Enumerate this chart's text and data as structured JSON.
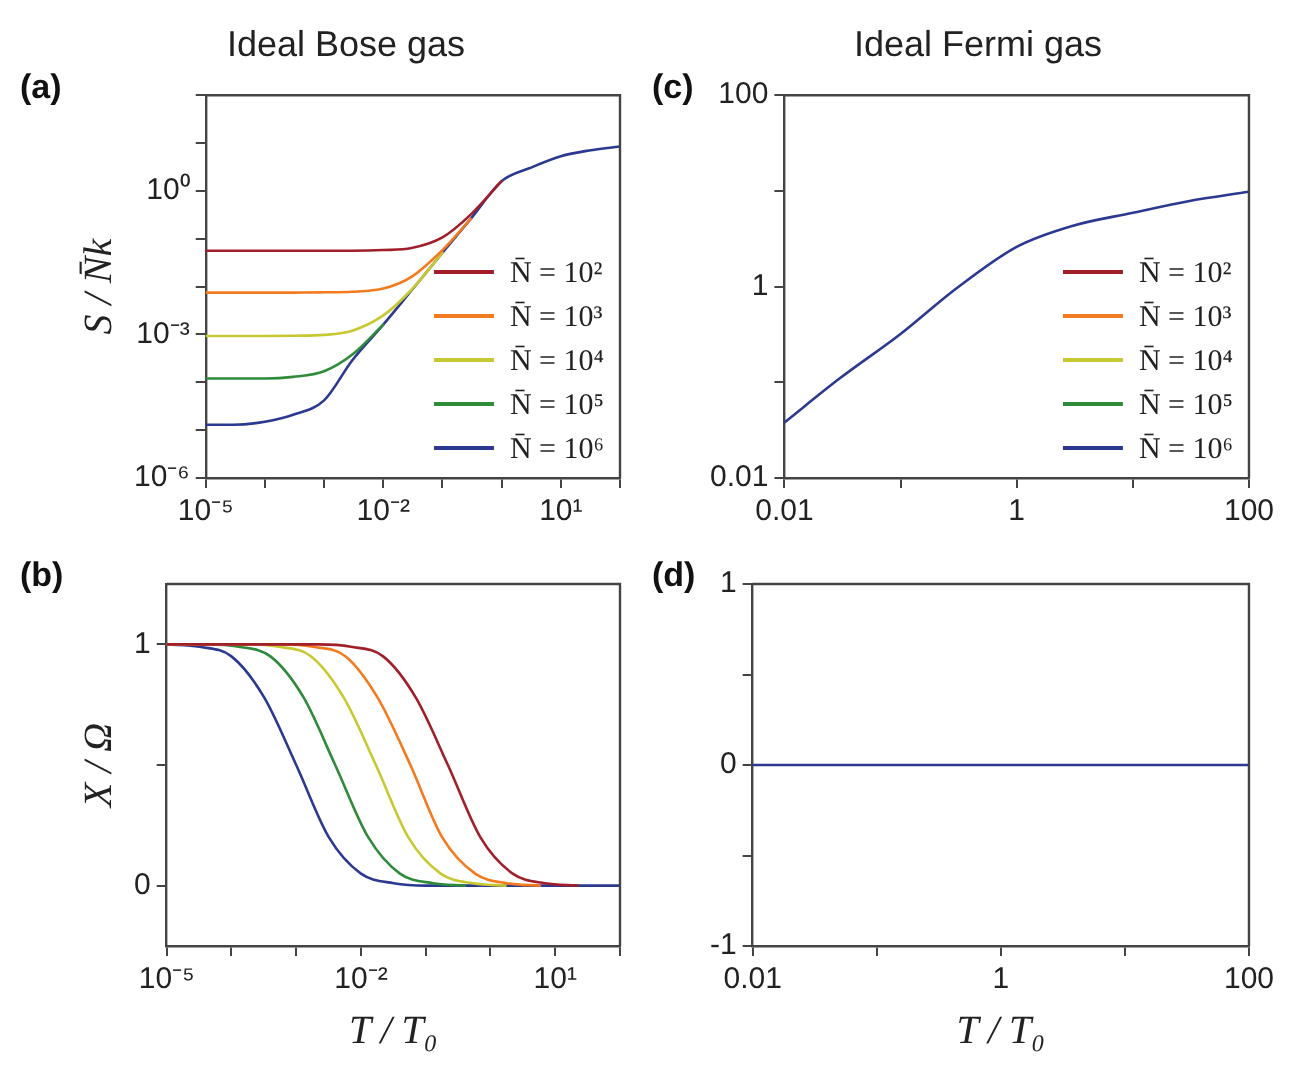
{
  "chart_data": [
    {
      "type": "line",
      "title": "Ideal Bose gas",
      "ylabel": "S / N̄k",
      "annotations": [
        "(a)"
      ],
      "log": "xy",
      "grid": false,
      "legend": "right",
      "marker": "none",
      "line_style": "solid",
      "x": [
        1e-05,
        3e-05,
        0.0001,
        0.0003,
        0.001,
        0.003,
        0.01,
        0.03,
        0.1,
        0.3,
        1,
        3,
        10,
        30,
        100
      ],
      "xlim": [
        1e-05,
        100
      ],
      "ylim": [
        1e-06,
        100
      ],
      "xticks": [
        {
          "value": 1e-05,
          "label": "10⁻⁵"
        },
        {
          "value": 0.0001,
          "label": null
        },
        {
          "value": 0.001,
          "label": null
        },
        {
          "value": 0.01,
          "label": "10⁻²"
        },
        {
          "value": 0.1,
          "label": null
        },
        {
          "value": 1,
          "label": null
        },
        {
          "value": 10,
          "label": "10¹"
        },
        {
          "value": 100,
          "label": null
        }
      ],
      "yticks": [
        {
          "value": 1e-06,
          "label": "10⁻⁶"
        },
        {
          "value": 1e-05,
          "label": null
        },
        {
          "value": 0.0001,
          "label": null
        },
        {
          "value": 0.001,
          "label": "10⁻³"
        },
        {
          "value": 0.01,
          "label": null
        },
        {
          "value": 0.1,
          "label": null
        },
        {
          "value": 1,
          "label": "10⁰"
        },
        {
          "value": 10,
          "label": null
        },
        {
          "value": 100,
          "label": null
        }
      ],
      "series": [
        {
          "name": "N̄ = 10²",
          "color": "#a01f2a",
          "values": [
            0.056,
            0.056,
            0.056,
            0.056,
            0.056,
            0.056,
            0.058,
            0.064,
            0.107,
            0.32,
            1.6,
            null,
            null,
            null,
            null
          ]
        },
        {
          "name": "N̄ = 10³",
          "color": "#f47a20",
          "values": [
            0.0075,
            0.0075,
            0.0075,
            0.0075,
            0.0076,
            0.0078,
            0.0091,
            0.016,
            0.058,
            0.26,
            null,
            null,
            null,
            null,
            null
          ]
        },
        {
          "name": "N̄ = 10⁴",
          "color": "#c8c832",
          "values": [
            0.00093,
            0.00093,
            0.00093,
            0.00094,
            0.00098,
            0.0012,
            0.0025,
            0.0086,
            0.051,
            null,
            null,
            null,
            null,
            null,
            null
          ]
        },
        {
          "name": "N̄ = 10⁵",
          "color": "#2e8b3a",
          "values": [
            0.00012,
            0.00012,
            0.00012,
            0.00013,
            0.00017,
            0.00038,
            0.0016,
            null,
            null,
            null,
            null,
            null,
            null,
            null,
            null
          ]
        },
        {
          "name": "N̄ = 10⁶",
          "color": "#2b3990",
          "values": [
            1.3e-05,
            1.3e-05,
            1.5e-05,
            2.1e-05,
            4.2e-05,
            0.00029,
            0.0016,
            0.0083,
            0.051,
            0.26,
            1.6,
            3,
            5.3,
            7,
            8.5
          ]
        }
      ]
    },
    {
      "type": "line",
      "title": "Ideal Fermi gas",
      "annotations": [
        "(c)"
      ],
      "log": "xy",
      "grid": false,
      "legend": "right",
      "marker": "none",
      "line_style": "solid",
      "x": [
        0.01,
        0.03,
        0.1,
        0.3,
        1,
        3,
        10,
        30,
        100
      ],
      "xlim": [
        0.01,
        100
      ],
      "ylim": [
        0.01,
        100
      ],
      "xticks": [
        0.01,
        {
          "value": 0.1,
          "label": null
        },
        1,
        {
          "value": 10,
          "label": null
        },
        100
      ],
      "yticks": [
        0.01,
        {
          "value": 0.1,
          "label": null
        },
        1,
        {
          "value": 10,
          "label": null
        },
        100
      ],
      "series": [
        {
          "name": "N̄ = 10²",
          "color": "#a01f2a",
          "values": [
            null,
            null,
            null,
            null,
            null,
            null,
            null,
            null,
            null
          ]
        },
        {
          "name": "N̄ = 10³",
          "color": "#f47a20",
          "values": [
            null,
            null,
            null,
            null,
            null,
            null,
            null,
            null,
            null
          ]
        },
        {
          "name": "N̄ = 10⁴",
          "color": "#c8c832",
          "values": [
            null,
            null,
            null,
            null,
            null,
            null,
            null,
            null,
            null
          ]
        },
        {
          "name": "N̄ = 10⁵",
          "color": "#2e8b3a",
          "values": [
            null,
            null,
            null,
            null,
            null,
            null,
            null,
            null,
            null
          ]
        },
        {
          "name": "N̄ = 10⁶",
          "color": "#2b3990",
          "values": [
            0.038,
            0.11,
            0.32,
            0.95,
            2.6,
            4.3,
            5.9,
            7.8,
            9.8
          ]
        }
      ]
    },
    {
      "type": "line",
      "xlabel": "T / T₀",
      "ylabel": "X / Ω",
      "annotations": [
        "(b)"
      ],
      "log": "x",
      "grid": false,
      "marker": "none",
      "line_style": "solid",
      "xlim": [
        1e-05,
        100
      ],
      "ylim": [
        -0.25,
        1.25
      ],
      "xticks": [
        {
          "value": 1e-05,
          "label": "10⁻⁵"
        },
        {
          "value": 0.0001,
          "label": null
        },
        {
          "value": 0.001,
          "label": null
        },
        {
          "value": 0.01,
          "label": "10⁻²"
        },
        {
          "value": 0.1,
          "label": null
        },
        {
          "value": 1,
          "label": null
        },
        {
          "value": 10,
          "label": "10¹"
        },
        {
          "value": 100,
          "label": null
        }
      ],
      "yticks": [
        0,
        {
          "value": 0.5,
          "label": null
        },
        1
      ],
      "series": [
        {
          "color": "#a01f2a",
          "x": [
            1e-05,
            0.0022,
            0.007,
            0.022,
            0.07,
            0.22,
            0.7,
            2.2,
            7,
            22
          ],
          "values": [
            1,
            1,
            0.99,
            0.95,
            0.78,
            0.5,
            0.2,
            0.05,
            0.01,
            0
          ]
        },
        {
          "color": "#f47a20",
          "x": [
            1e-05,
            0.00058,
            0.0018,
            0.0058,
            0.018,
            0.058,
            0.18,
            0.58,
            1.8,
            5.8
          ],
          "values": [
            1,
            1,
            0.99,
            0.95,
            0.78,
            0.5,
            0.2,
            0.05,
            0.01,
            0
          ]
        },
        {
          "color": "#c8c832",
          "x": [
            1e-05,
            0.00017,
            0.00054,
            0.0017,
            0.0054,
            0.017,
            0.054,
            0.17,
            0.54,
            1.7
          ],
          "values": [
            1,
            1,
            0.99,
            0.95,
            0.78,
            0.5,
            0.2,
            0.05,
            0.01,
            0
          ]
        },
        {
          "color": "#2e8b3a",
          "x": [
            1e-05,
            4e-05,
            0.00013,
            0.0004,
            0.0013,
            0.004,
            0.013,
            0.04,
            0.13,
            0.4
          ],
          "values": [
            1,
            1,
            0.99,
            0.95,
            0.78,
            0.5,
            0.2,
            0.05,
            0.01,
            0
          ]
        },
        {
          "color": "#2b3990",
          "x": [
            1e-05,
            3.2e-05,
            0.0001,
            0.00032,
            0.001,
            0.0032,
            0.01,
            0.032,
            0.1,
            100
          ],
          "values": [
            1,
            0.99,
            0.95,
            0.78,
            0.5,
            0.2,
            0.05,
            0.01,
            0,
            0
          ]
        }
      ]
    },
    {
      "type": "line",
      "xlabel": "T / T₀",
      "annotations": [
        "(d)"
      ],
      "log": "x",
      "grid": false,
      "marker": "none",
      "line_style": "solid",
      "x": [
        0.01,
        100
      ],
      "xlim": [
        0.01,
        100
      ],
      "ylim": [
        -1,
        1
      ],
      "xticks": [
        0.01,
        {
          "value": 0.1,
          "label": null
        },
        1,
        {
          "value": 10,
          "label": null
        },
        100
      ],
      "yticks": [
        -1,
        {
          "value": -0.5,
          "label": null
        },
        0,
        {
          "value": 0.5,
          "label": null
        },
        1
      ],
      "series": [
        {
          "color": "#2b3990",
          "values": [
            0,
            0
          ]
        }
      ]
    }
  ]
}
